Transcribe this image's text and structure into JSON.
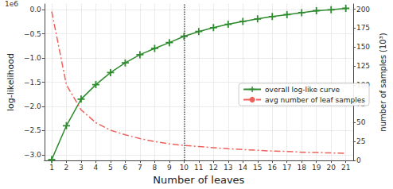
{
  "chart_data": {
    "type": "line",
    "x": [
      1,
      2,
      3,
      4,
      5,
      6,
      7,
      8,
      9,
      10,
      11,
      12,
      13,
      14,
      15,
      16,
      17,
      18,
      19,
      20,
      21
    ],
    "xlabel": "Number of leaves",
    "ylabel": "log-likelihood",
    "y2label": "number of samples (10³)",
    "y_offset_label": "1e6",
    "xlim": [
      0.5,
      21.5
    ],
    "xticks": [
      1,
      2,
      3,
      4,
      5,
      6,
      7,
      8,
      9,
      10,
      11,
      12,
      13,
      14,
      15,
      16,
      17,
      18,
      19,
      20,
      21
    ],
    "ylim": [
      -3.12,
      0.12
    ],
    "yticks": [
      {
        "value": -3,
        "label": "−3.0"
      },
      {
        "value": -2.5,
        "label": "−2.5"
      },
      {
        "value": -2,
        "label": "−2.0"
      },
      {
        "value": -1.5,
        "label": "−1.5"
      },
      {
        "value": -1,
        "label": "−1.0"
      },
      {
        "value": -0.5,
        "label": "−0.5"
      },
      {
        "value": 0,
        "label": "0.0"
      }
    ],
    "y2lim": [
      0,
      207
    ],
    "y2ticks": [
      0,
      25,
      50,
      75,
      100,
      125,
      150,
      175,
      200
    ],
    "grid": true,
    "legend": "center right",
    "vline_x": 10,
    "series": [
      {
        "name": "overall log-like curve",
        "color": "#2e8b2e",
        "marker": "plus",
        "line_style": "solid",
        "values": [
          -3.1,
          -2.4,
          -1.85,
          -1.55,
          -1.3,
          -1.1,
          -0.93,
          -0.8,
          -0.68,
          -0.55,
          -0.45,
          -0.37,
          -0.3,
          -0.24,
          -0.19,
          -0.14,
          -0.1,
          -0.06,
          -0.02,
          0.0,
          0.03
        ]
      },
      {
        "name": "avg number of leaf samples",
        "color": "#f0605a",
        "marker": "none",
        "line_style": "dashdot",
        "axis": "y2",
        "values": [
          197,
          100,
          67,
          50,
          40,
          34,
          29,
          25,
          22,
          20,
          18.5,
          17,
          15.5,
          14.5,
          13.5,
          12.5,
          12,
          11,
          10.5,
          10,
          9.5
        ]
      }
    ]
  }
}
